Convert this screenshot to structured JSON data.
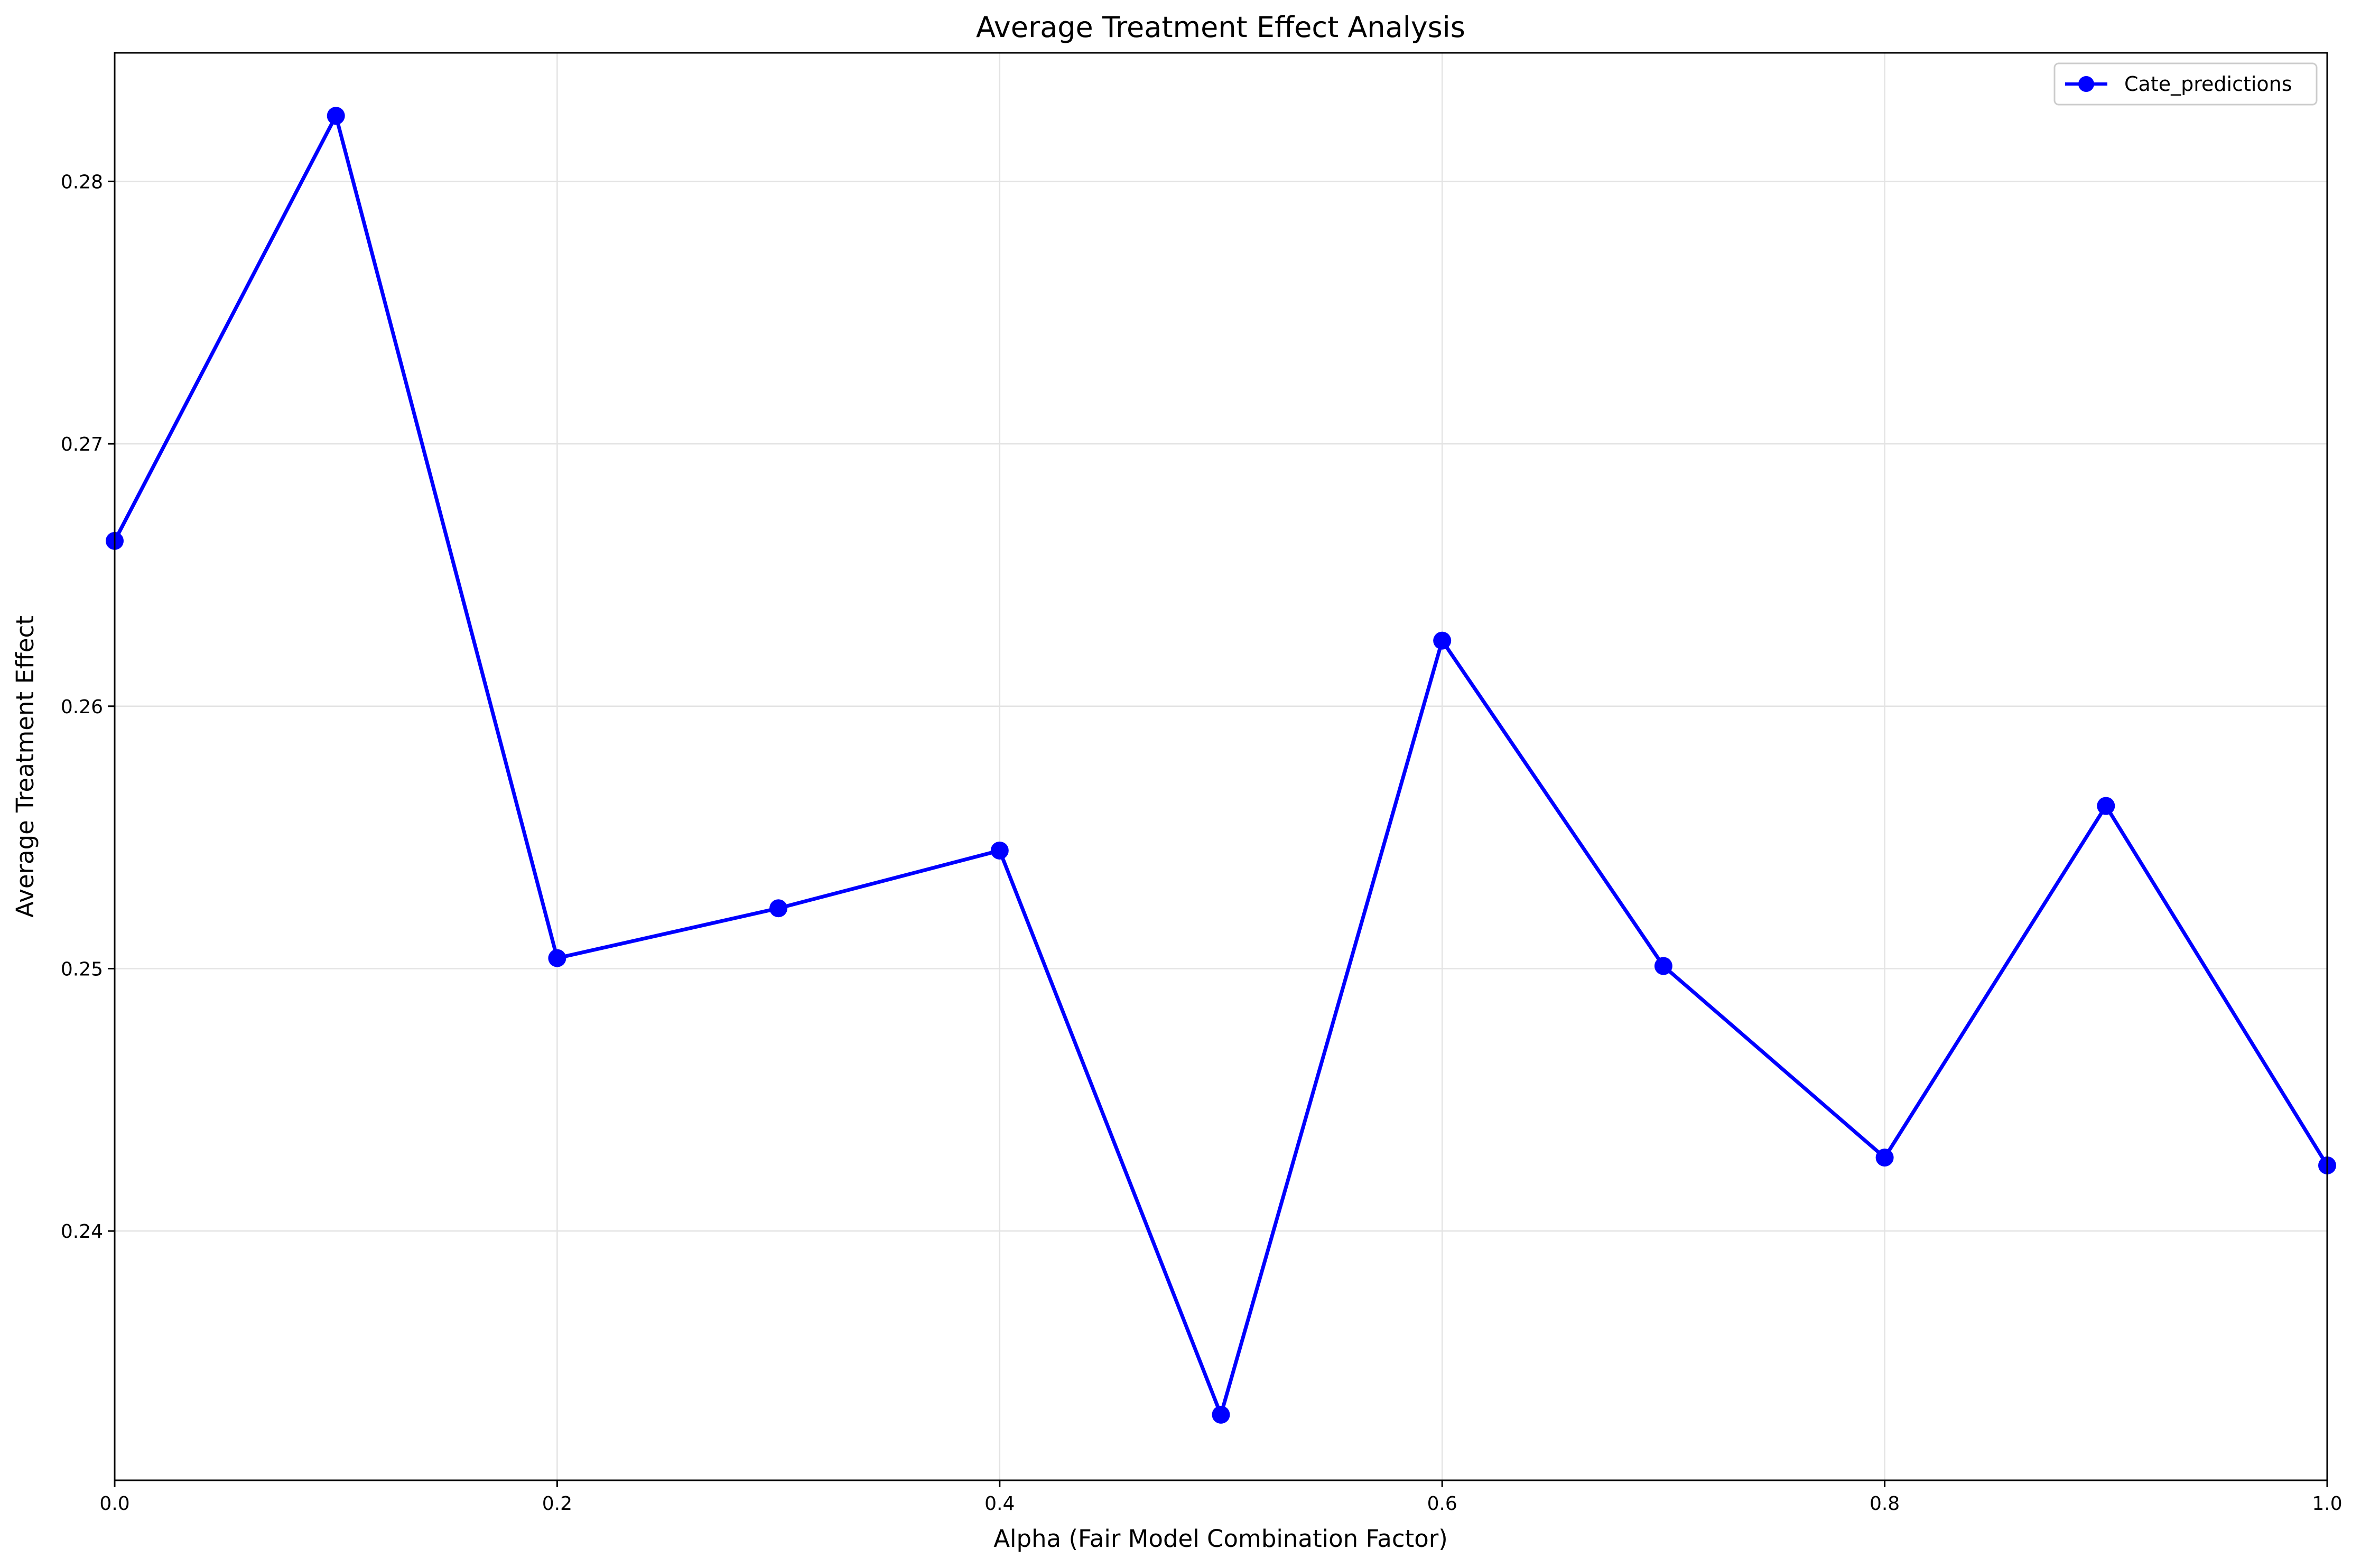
{
  "chart_data": {
    "type": "line",
    "title": "Average Treatment Effect Analysis",
    "xlabel": "Alpha (Fair Model Combination Factor)",
    "ylabel": "Average Treatment Effect",
    "xlim": [
      0.0,
      1.0
    ],
    "ylim": [
      0.2305,
      0.2849
    ],
    "grid": true,
    "legend_position": "top-right",
    "x_ticks": [
      0.0,
      0.2,
      0.4,
      0.6,
      0.8,
      1.0
    ],
    "x_tick_labels": [
      "0.0",
      "0.2",
      "0.4",
      "0.6",
      "0.8",
      "1.0"
    ],
    "y_ticks": [
      0.24,
      0.25,
      0.26,
      0.27,
      0.28
    ],
    "y_tick_labels": [
      "0.24",
      "0.25",
      "0.26",
      "0.27",
      "0.28"
    ],
    "x": [
      0.0,
      0.1,
      0.2,
      0.3,
      0.4,
      0.5,
      0.6,
      0.7,
      0.8,
      0.9,
      1.0
    ],
    "series": [
      {
        "name": "Cate_predictions",
        "color": "#0000ff",
        "marker": "circle",
        "values": [
          0.2663,
          0.2825,
          0.2504,
          0.2523,
          0.2545,
          0.233,
          0.2625,
          0.2501,
          0.2428,
          0.2562,
          0.2425
        ]
      }
    ]
  },
  "colors": {
    "series": "#0000ff",
    "grid": "#e3e3e3",
    "axes": "#000000",
    "legend_border": "#cccccc"
  }
}
